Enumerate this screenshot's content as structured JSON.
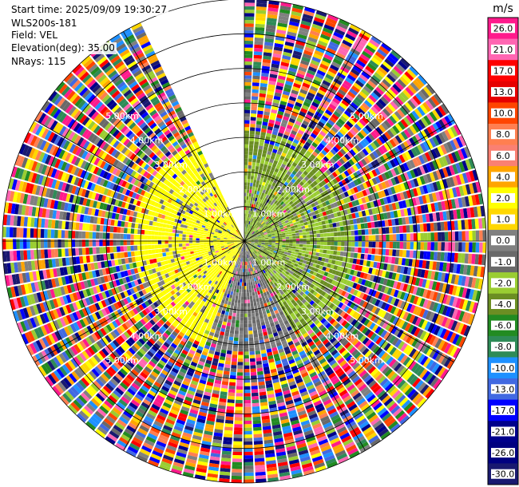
{
  "header": {
    "start_time": "Start time: 2025/09/09 19:30:27",
    "instrument": "WLS200s-181",
    "field": "Field: VEL",
    "elevation": "Elevation(deg): 35.00",
    "nrays": "NRays: 115"
  },
  "chart_data": {
    "type": "heatmap",
    "subtype": "polar-ppi",
    "field": "VEL",
    "elevation_deg": 35.0,
    "n_rays": 115,
    "max_range_km": 7.0,
    "range_ring_labels": [
      "1.00km",
      "2.00km",
      "3.00km",
      "4.00km",
      "5.00km"
    ],
    "missing_sector_deg": [
      335,
      360
    ],
    "regions": [
      {
        "azimuth_deg": [
          200,
          335
        ],
        "range_km": [
          0.0,
          3.2
        ],
        "dominant_value_ms": 3.0
      },
      {
        "azimuth_deg": [
          0,
          150
        ],
        "range_km": [
          0.0,
          3.2
        ],
        "dominant_value_ms": -2.0
      },
      {
        "azimuth_deg": [
          0,
          360
        ],
        "range_km": [
          3.2,
          7.0
        ],
        "dominant_value_ms": "noise"
      }
    ],
    "colorbar": {
      "units": "m/s",
      "ticks": [
        "26.0",
        "21.0",
        "17.0",
        "13.0",
        "10.0",
        "8.0",
        "6.0",
        "4.0",
        "2.0",
        "1.0",
        "0.0",
        "-1.0",
        "-2.0",
        "-4.0",
        "-6.0",
        "-8.0",
        "-10.0",
        "-13.0",
        "-17.0",
        "-21.0",
        "-26.0",
        "-30.0"
      ],
      "colors": [
        "#ff1a8c",
        "#ff66b2",
        "#ff0000",
        "#e60000",
        "#ff4500",
        "#ff7f50",
        "#fa8072",
        "#ffa500",
        "#ffff00",
        "#ffd700",
        "#808080",
        "#696969",
        "#9acd32",
        "#6b8e23",
        "#228b22",
        "#2e8b57",
        "#1e90ff",
        "#4169e1",
        "#0000ff",
        "#00008b",
        "#000080",
        "#191970"
      ]
    }
  }
}
